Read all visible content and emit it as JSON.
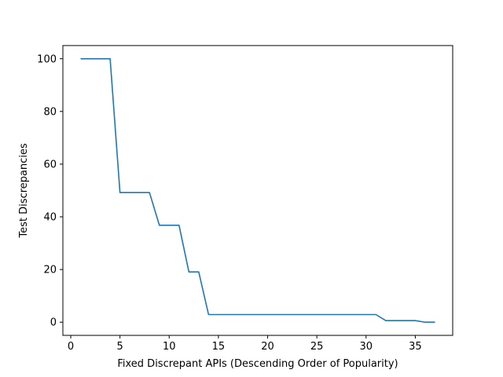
{
  "chart_data": {
    "type": "line",
    "title": "",
    "xlabel": "Fixed Discrepant APIs (Descending Order of Popularity)",
    "ylabel": "Test Discrepancies",
    "xlim": [
      -0.8,
      38.8
    ],
    "ylim": [
      -5,
      105
    ],
    "xticks": [
      0,
      5,
      10,
      15,
      20,
      25,
      30,
      35
    ],
    "yticks": [
      0,
      20,
      40,
      60,
      80,
      100
    ],
    "grid": false,
    "legend": "none",
    "series": [
      {
        "color": "#1f77b4",
        "x": [
          1,
          2,
          3,
          4,
          5,
          6,
          7,
          8,
          9,
          10,
          11,
          12,
          13,
          14,
          15,
          16,
          17,
          18,
          19,
          20,
          21,
          22,
          23,
          24,
          25,
          26,
          27,
          28,
          29,
          30,
          31,
          32,
          33,
          34,
          35,
          36,
          37
        ],
        "y": [
          100,
          100,
          100,
          100,
          49.2,
          49.2,
          49.2,
          49.2,
          36.8,
          36.8,
          36.8,
          19.1,
          19.1,
          2.9,
          2.9,
          2.9,
          2.9,
          2.9,
          2.9,
          2.9,
          2.9,
          2.9,
          2.9,
          2.9,
          2.9,
          2.9,
          2.9,
          2.9,
          2.9,
          2.9,
          2.9,
          0.6,
          0.6,
          0.6,
          0.6,
          0.0,
          0.0
        ]
      }
    ]
  }
}
